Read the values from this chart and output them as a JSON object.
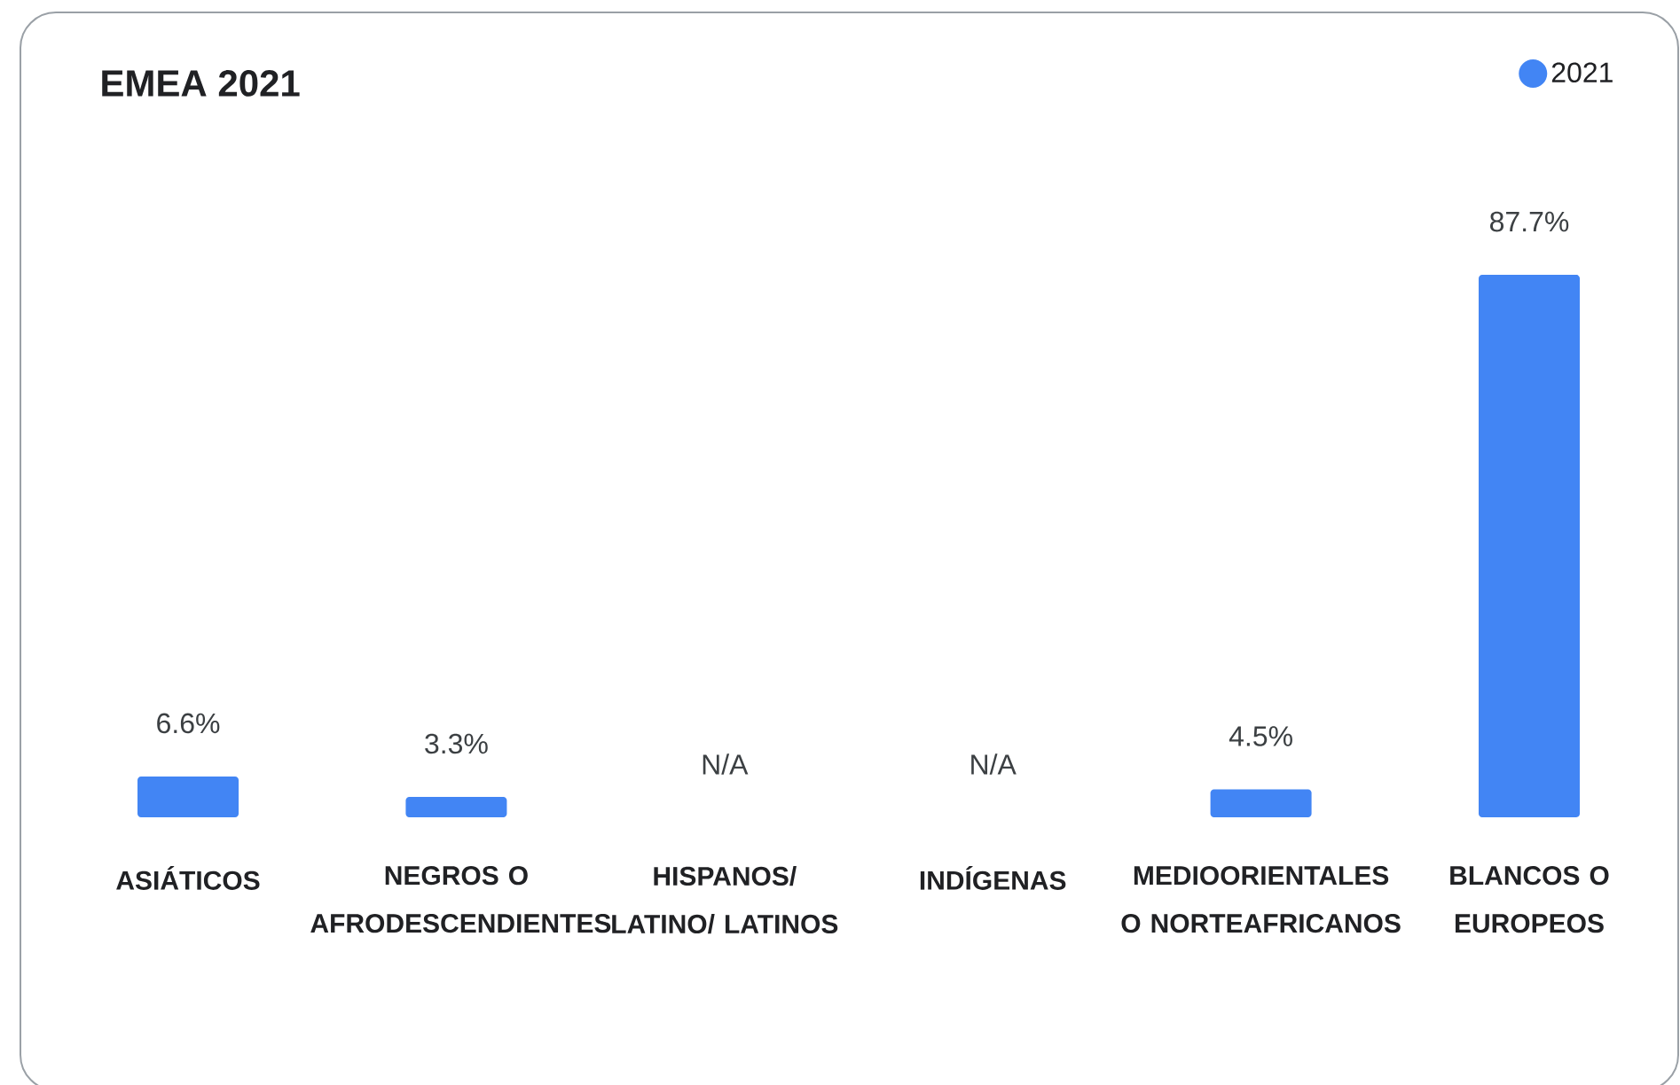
{
  "chart_data": {
    "type": "bar",
    "title": "EMEA 2021",
    "categories": [
      "ASIÁTICOS",
      "NEGROS O AFRODESCENDIENTES",
      "HISPANOS/ LATINO/ LATINOS",
      "INDÍGENAS",
      "MEDIOORIENTALES O NORTEAFRICANOS",
      "BLANCOS O EUROPEOS"
    ],
    "series": [
      {
        "name": "2021",
        "color": "#4285f4",
        "values": [
          6.6,
          3.3,
          null,
          null,
          4.5,
          87.7
        ],
        "value_labels": [
          "6.6%",
          "3.3%",
          "N/A",
          "N/A",
          "4.5%",
          "87.7%"
        ]
      }
    ],
    "legend": "top right"
  }
}
